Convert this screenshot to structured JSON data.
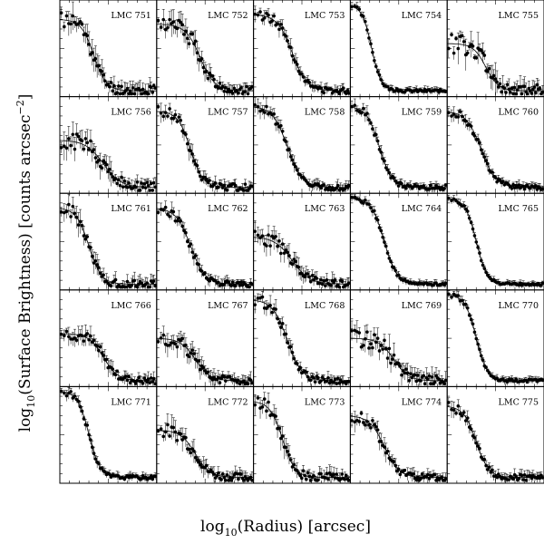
{
  "figure": {
    "ylabel": {
      "pre": "log",
      "sub": "10",
      "mid": "(Surface Brightness) [counts arcsec",
      "sup": "−2",
      "post": "]"
    },
    "xlabel": {
      "pre": "log",
      "sub": "10",
      "post": "(Radius) [arcsec]"
    }
  },
  "chart_data": {
    "type": "scatter",
    "grid": false,
    "rows": 5,
    "cols": 5,
    "panels": [
      {
        "label": "LMC 751",
        "type": "scatter",
        "core": 0.35,
        "slope": 7,
        "plateau": 0.8,
        "scatter": 0.22,
        "seed": 11
      },
      {
        "label": "LMC 752",
        "type": "scatter",
        "core": 0.45,
        "slope": 6,
        "plateau": 0.75,
        "scatter": 0.2,
        "seed": 12
      },
      {
        "label": "LMC 753",
        "type": "scatter",
        "core": 0.4,
        "slope": 6,
        "plateau": 0.85,
        "scatter": 0.12,
        "seed": 13
      },
      {
        "label": "LMC 754",
        "type": "scatter",
        "core": 0.22,
        "slope": 9,
        "plateau": 0.95,
        "scatter": 0.06,
        "seed": 14
      },
      {
        "label": "LMC 755",
        "type": "scatter",
        "core": 0.4,
        "slope": 7,
        "plateau": 0.55,
        "scatter": 0.25,
        "seed": 15
      },
      {
        "label": "LMC 756",
        "type": "scatter",
        "core": 0.45,
        "slope": 5,
        "plateau": 0.55,
        "scatter": 0.22,
        "seed": 16
      },
      {
        "label": "LMC 757",
        "type": "scatter",
        "core": 0.35,
        "slope": 7,
        "plateau": 0.85,
        "scatter": 0.15,
        "seed": 17
      },
      {
        "label": "LMC 758",
        "type": "scatter",
        "core": 0.35,
        "slope": 6,
        "plateau": 0.9,
        "scatter": 0.12,
        "seed": 18
      },
      {
        "label": "LMC 759",
        "type": "scatter",
        "core": 0.3,
        "slope": 7,
        "plateau": 0.9,
        "scatter": 0.1,
        "seed": 19
      },
      {
        "label": "LMC 760",
        "type": "scatter",
        "core": 0.35,
        "slope": 6,
        "plateau": 0.85,
        "scatter": 0.1,
        "seed": 20
      },
      {
        "label": "LMC 761",
        "type": "scatter",
        "core": 0.3,
        "slope": 7,
        "plateau": 0.85,
        "scatter": 0.18,
        "seed": 21
      },
      {
        "label": "LMC 762",
        "type": "scatter",
        "core": 0.35,
        "slope": 6,
        "plateau": 0.85,
        "scatter": 0.12,
        "seed": 22
      },
      {
        "label": "LMC 763",
        "type": "scatter",
        "core": 0.4,
        "slope": 5,
        "plateau": 0.55,
        "scatter": 0.18,
        "seed": 23
      },
      {
        "label": "LMC 764",
        "type": "scatter",
        "core": 0.35,
        "slope": 7,
        "plateau": 0.95,
        "scatter": 0.06,
        "seed": 24
      },
      {
        "label": "LMC 765",
        "type": "scatter",
        "core": 0.3,
        "slope": 8,
        "plateau": 0.95,
        "scatter": 0.05,
        "seed": 25
      },
      {
        "label": "LMC 766",
        "type": "scatter",
        "core": 0.45,
        "slope": 6,
        "plateau": 0.55,
        "scatter": 0.15,
        "seed": 26
      },
      {
        "label": "LMC 767",
        "type": "scatter",
        "core": 0.4,
        "slope": 6,
        "plateau": 0.5,
        "scatter": 0.18,
        "seed": 27
      },
      {
        "label": "LMC 768",
        "type": "scatter",
        "core": 0.35,
        "slope": 6,
        "plateau": 0.9,
        "scatter": 0.14,
        "seed": 28
      },
      {
        "label": "LMC 769",
        "type": "scatter",
        "core": 0.45,
        "slope": 6,
        "plateau": 0.5,
        "scatter": 0.22,
        "seed": 29
      },
      {
        "label": "LMC 770",
        "type": "scatter",
        "core": 0.3,
        "slope": 8,
        "plateau": 0.95,
        "scatter": 0.06,
        "seed": 30
      },
      {
        "label": "LMC 771",
        "type": "scatter",
        "core": 0.3,
        "slope": 8,
        "plateau": 0.95,
        "scatter": 0.08,
        "seed": 31
      },
      {
        "label": "LMC 772",
        "type": "scatter",
        "core": 0.4,
        "slope": 6,
        "plateau": 0.55,
        "scatter": 0.18,
        "seed": 32
      },
      {
        "label": "LMC 773",
        "type": "scatter",
        "core": 0.3,
        "slope": 7,
        "plateau": 0.85,
        "scatter": 0.18,
        "seed": 33
      },
      {
        "label": "LMC 774",
        "type": "scatter",
        "core": 0.35,
        "slope": 6,
        "plateau": 0.7,
        "scatter": 0.15,
        "seed": 34
      },
      {
        "label": "LMC 775",
        "type": "scatter",
        "core": 0.3,
        "slope": 7,
        "plateau": 0.8,
        "scatter": 0.12,
        "seed": 35
      }
    ]
  }
}
